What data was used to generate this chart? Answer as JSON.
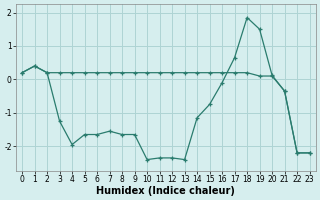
{
  "x": [
    0,
    1,
    2,
    3,
    4,
    5,
    6,
    7,
    8,
    9,
    10,
    11,
    12,
    13,
    14,
    15,
    16,
    17,
    18,
    19,
    20,
    21,
    22,
    23
  ],
  "series1": [
    0.2,
    0.4,
    0.2,
    0.2,
    0.2,
    0.2,
    0.2,
    0.2,
    0.2,
    0.2,
    0.2,
    0.2,
    0.2,
    0.2,
    0.2,
    0.2,
    0.2,
    0.2,
    0.2,
    0.1,
    0.1,
    -0.35,
    -2.2,
    -2.2
  ],
  "series2": [
    0.2,
    0.4,
    0.2,
    -1.25,
    -1.95,
    -1.65,
    -1.65,
    -1.55,
    -1.65,
    -1.65,
    -2.4,
    -2.35,
    -2.35,
    -2.4,
    -1.15,
    -0.75,
    -0.1,
    0.65,
    1.85,
    1.5,
    0.12,
    -0.35,
    -2.2,
    -2.2
  ],
  "line_color": "#2a7c6e",
  "bg_color": "#d6eeee",
  "grid_color": "#aed4d4",
  "xlabel": "Humidex (Indice chaleur)",
  "xlabel_fontsize": 7,
  "tick_fontsize": 5.5,
  "ylim": [
    -2.75,
    2.25
  ],
  "xlim": [
    -0.5,
    23.5
  ],
  "yticks": [
    -2,
    -1,
    0,
    1,
    2
  ],
  "xticks": [
    0,
    1,
    2,
    3,
    4,
    5,
    6,
    7,
    8,
    9,
    10,
    11,
    12,
    13,
    14,
    15,
    16,
    17,
    18,
    19,
    20,
    21,
    22,
    23
  ]
}
